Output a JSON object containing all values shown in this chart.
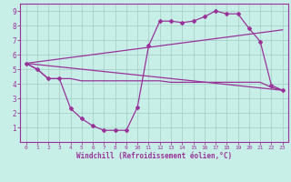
{
  "xlabel": "Windchill (Refroidissement éolien,°C)",
  "bg_color": "#c8eee8",
  "grid_color": "#a0ccc4",
  "line_color": "#993399",
  "spine_color": "#993399",
  "xlim": [
    -0.5,
    23.5
  ],
  "ylim": [
    0,
    9.5
  ],
  "xticks": [
    0,
    1,
    2,
    3,
    4,
    5,
    6,
    7,
    8,
    9,
    10,
    11,
    12,
    13,
    14,
    15,
    16,
    17,
    18,
    19,
    20,
    21,
    22,
    23
  ],
  "yticks": [
    1,
    2,
    3,
    4,
    5,
    6,
    7,
    8,
    9
  ],
  "series": [
    {
      "x": [
        0,
        1,
        2,
        3,
        4,
        5,
        6,
        7,
        8,
        9,
        10,
        11,
        12,
        13,
        14,
        15,
        16,
        17,
        18,
        19,
        20,
        21,
        22,
        23
      ],
      "y": [
        5.4,
        5.0,
        4.35,
        4.35,
        4.35,
        4.2,
        4.2,
        4.2,
        4.2,
        4.2,
        4.2,
        4.2,
        4.2,
        4.1,
        4.1,
        4.1,
        4.1,
        4.1,
        4.1,
        4.1,
        4.1,
        4.1,
        3.75,
        3.55
      ],
      "marker": null,
      "lw": 0.9
    },
    {
      "x": [
        0,
        1,
        2,
        3,
        4,
        5,
        6,
        7,
        8,
        9,
        10,
        11,
        12,
        13,
        14,
        15,
        16,
        17,
        18,
        19,
        20,
        21,
        22,
        23
      ],
      "y": [
        5.4,
        5.0,
        4.35,
        4.35,
        2.3,
        1.6,
        1.1,
        0.8,
        0.8,
        0.8,
        2.4,
        6.6,
        8.3,
        8.3,
        8.2,
        8.3,
        8.6,
        9.0,
        8.8,
        8.8,
        7.8,
        6.9,
        3.9,
        3.55
      ],
      "marker": "D",
      "lw": 0.9
    },
    {
      "x": [
        0,
        23
      ],
      "y": [
        5.4,
        3.55
      ],
      "marker": null,
      "lw": 0.9
    },
    {
      "x": [
        0,
        23
      ],
      "y": [
        5.4,
        7.7
      ],
      "marker": null,
      "lw": 0.9
    }
  ]
}
